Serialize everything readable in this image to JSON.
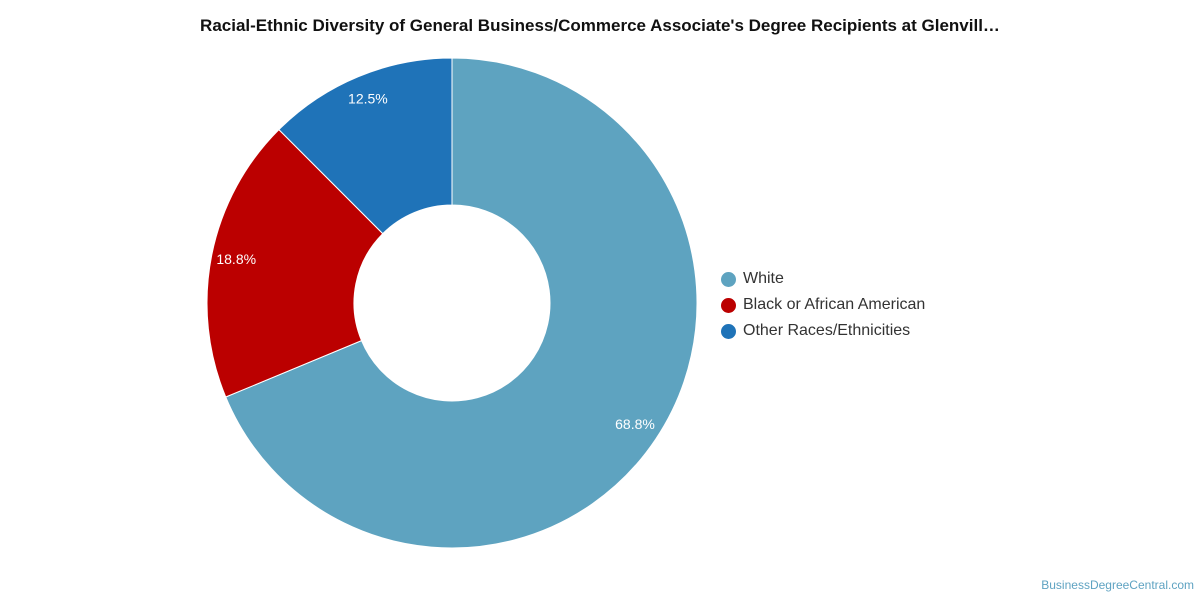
{
  "chart_data": {
    "type": "pie",
    "title": "Racial-Ethnic Diversity of General Business/Commerce Associate's Degree Recipients at Glenvill…",
    "categories": [
      "White",
      "Black or African American",
      "Other Races/Ethnicities"
    ],
    "values": [
      68.8,
      18.8,
      12.5
    ],
    "labels": [
      "68.8%",
      "18.8%",
      "12.5%"
    ],
    "colors": [
      "#5ea3c0",
      "#bb0000",
      "#1f73b8"
    ],
    "donut": true,
    "legend_position": "right"
  },
  "watermark": "BusinessDegreeCentral.com"
}
